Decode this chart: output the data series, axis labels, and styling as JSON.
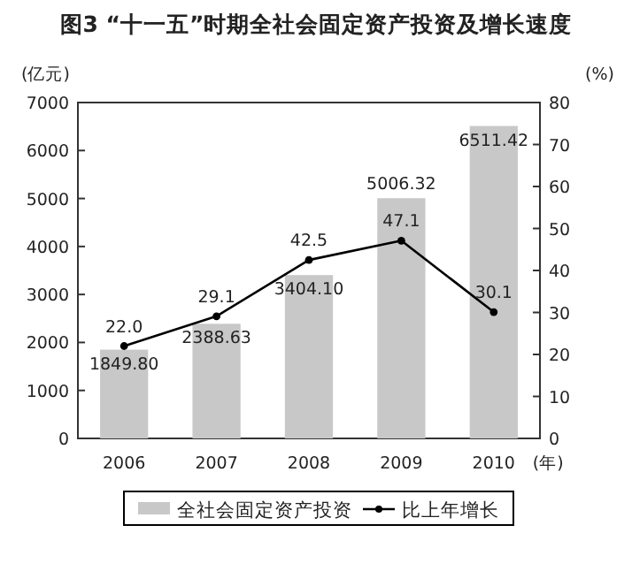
{
  "chart_data": {
    "type": "bar",
    "title": "图3 “十一五”时期全社会固定资产投资及增长速度",
    "ylabel": "(亿元)",
    "y2label": "(%)",
    "xlabel": "(年)",
    "categories": [
      "2006",
      "2007",
      "2008",
      "2009",
      "2010"
    ],
    "series": [
      {
        "name": "全社会固定资产投资",
        "color": "#c8c8c8",
        "values": [
          1849.8,
          2388.63,
          3404.1,
          5006.32,
          6511.42
        ],
        "value_labels": [
          "1849.80",
          "2388.63",
          "3404.10",
          "5006.32",
          "6511.42"
        ]
      },
      {
        "name": "比上年增长",
        "type": "line",
        "axis": "y2",
        "color": "#000000",
        "values": [
          22.0,
          29.1,
          42.5,
          47.1,
          30.1
        ],
        "value_labels": [
          "22.0",
          "29.1",
          "42.5",
          "47.1",
          "30.1"
        ]
      }
    ],
    "ylim": [
      0,
      7000
    ],
    "yticks": [
      0,
      1000,
      2000,
      3000,
      4000,
      5000,
      6000,
      7000
    ],
    "y2lim": [
      0,
      80
    ],
    "y2ticks": [
      0,
      10,
      20,
      30,
      40,
      50,
      60,
      70,
      80
    ],
    "marker": "circle",
    "grid": false,
    "legend": "bottom"
  }
}
